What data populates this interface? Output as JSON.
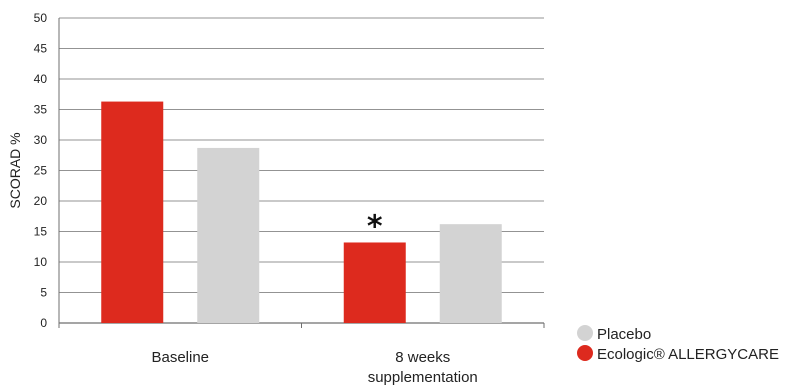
{
  "chart_data": {
    "type": "bar",
    "ylabel": "SCORAD %",
    "xlabel": "",
    "ylim": [
      0,
      50
    ],
    "yticks": [
      0,
      5,
      10,
      15,
      20,
      25,
      30,
      35,
      40,
      45,
      50
    ],
    "grid": true,
    "categories": [
      [
        "Baseline"
      ],
      [
        "8 weeks",
        "supplementation"
      ]
    ],
    "series": [
      {
        "name": "Ecologic® ALLERGYCARE",
        "color": "#dd2a1e",
        "values": [
          36.3,
          13.2
        ]
      },
      {
        "name": "Placebo",
        "color": "#d3d3d3",
        "values": [
          28.7,
          16.2
        ]
      }
    ],
    "legend_order": [
      1,
      0
    ],
    "legend_position": "bottom-right",
    "annotations": [
      {
        "text": "*",
        "category": 1,
        "series": 0
      }
    ]
  }
}
